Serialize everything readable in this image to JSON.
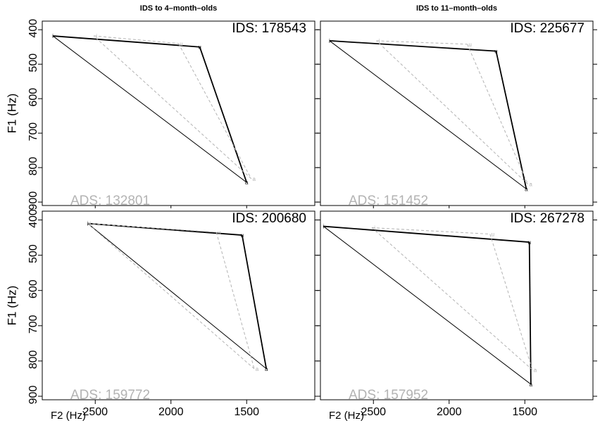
{
  "figure": {
    "y_axis_label": "F1 (Hz)",
    "x_axis_label": "F2 (Hz)",
    "column_titles": [
      "IDS to 4–month–olds",
      "IDS to 11–month–olds"
    ],
    "y_tick_labels_top": [
      "400",
      "500",
      "600",
      "700",
      "800",
      "900"
    ],
    "y_tick_labels_bottom": [
      "400",
      "500",
      "600",
      "700",
      "800",
      "900"
    ],
    "x_tick_labels": [
      "2500",
      "2000",
      "1500"
    ],
    "colors": {
      "ids": "#000000",
      "ads": "#b3b3b3"
    }
  },
  "chart_data": [
    {
      "type": "scatter",
      "panel": "top-left",
      "title": "IDS to 4–month–olds",
      "xlim": [
        2850,
        1050
      ],
      "ylim": [
        910,
        375
      ],
      "x_reversed": true,
      "y_reversed": true,
      "xlabel": "",
      "ylabel": "F1 (Hz)",
      "ids_label": "IDS: 178543",
      "ads_label": "ADS: 132801",
      "series": [
        {
          "name": "IDS",
          "style": "solid",
          "points": [
            {
              "label": "i",
              "x": 2780,
              "y": 418
            },
            {
              "label": "u",
              "x": 1810,
              "y": 450
            },
            {
              "label": "a",
              "x": 1500,
              "y": 843
            }
          ]
        },
        {
          "name": "ADS",
          "style": "dashed",
          "points": [
            {
              "label": "i",
              "x": 2510,
              "y": 418
            },
            {
              "label": "u",
              "x": 1950,
              "y": 440
            },
            {
              "label": "a",
              "x": 1470,
              "y": 832
            }
          ]
        }
      ]
    },
    {
      "type": "scatter",
      "panel": "top-right",
      "title": "IDS to 11–month–olds",
      "xlim": [
        2850,
        1050
      ],
      "ylim": [
        910,
        375
      ],
      "x_reversed": true,
      "y_reversed": true,
      "xlabel": "",
      "ylabel": "",
      "ids_label": "IDS: 225677",
      "ads_label": "ADS: 151452",
      "series": [
        {
          "name": "IDS",
          "style": "solid",
          "points": [
            {
              "label": "i",
              "x": 2790,
              "y": 432
            },
            {
              "label": "u",
              "x": 1690,
              "y": 462
            },
            {
              "label": "a",
              "x": 1490,
              "y": 862
            }
          ]
        },
        {
          "name": "ADS",
          "style": "dashed",
          "points": [
            {
              "label": "i",
              "x": 2480,
              "y": 432
            },
            {
              "label": "u",
              "x": 1880,
              "y": 442
            },
            {
              "label": "a",
              "x": 1480,
              "y": 848
            }
          ]
        }
      ]
    },
    {
      "type": "scatter",
      "panel": "bottom-left",
      "title": "",
      "xlim": [
        2850,
        1050
      ],
      "ylim": [
        910,
        375
      ],
      "x_reversed": true,
      "y_reversed": true,
      "xlabel": "F2 (Hz)",
      "ylabel": "F1 (Hz)",
      "ids_label": "IDS: 200680",
      "ads_label": "ADS: 159772",
      "series": [
        {
          "name": "IDS",
          "style": "solid",
          "points": [
            {
              "label": "i",
              "x": 2550,
              "y": 410
            },
            {
              "label": "u",
              "x": 1530,
              "y": 443
            },
            {
              "label": "a",
              "x": 1370,
              "y": 822
            }
          ]
        },
        {
          "name": "ADS",
          "style": "dashed",
          "points": [
            {
              "label": "i",
              "x": 2550,
              "y": 410
            },
            {
              "label": "u",
              "x": 1700,
              "y": 435
            },
            {
              "label": "a",
              "x": 1450,
              "y": 822
            }
          ]
        }
      ]
    },
    {
      "type": "scatter",
      "panel": "bottom-right",
      "title": "",
      "xlim": [
        2850,
        1050
      ],
      "ylim": [
        910,
        375
      ],
      "x_reversed": true,
      "y_reversed": true,
      "xlabel": "F2 (Hz)",
      "ylabel": "",
      "ids_label": "IDS: 267278",
      "ads_label": "ADS: 157952",
      "series": [
        {
          "name": "IDS",
          "style": "solid",
          "points": [
            {
              "label": "i",
              "x": 2830,
              "y": 418
            },
            {
              "label": "u",
              "x": 1470,
              "y": 463
            },
            {
              "label": "a",
              "x": 1460,
              "y": 866
            }
          ]
        },
        {
          "name": "ADS",
          "style": "dashed",
          "points": [
            {
              "label": "i",
              "x": 2510,
              "y": 422
            },
            {
              "label": "u",
              "x": 1730,
              "y": 440
            },
            {
              "label": "a",
              "x": 1450,
              "y": 825
            }
          ]
        }
      ]
    }
  ]
}
